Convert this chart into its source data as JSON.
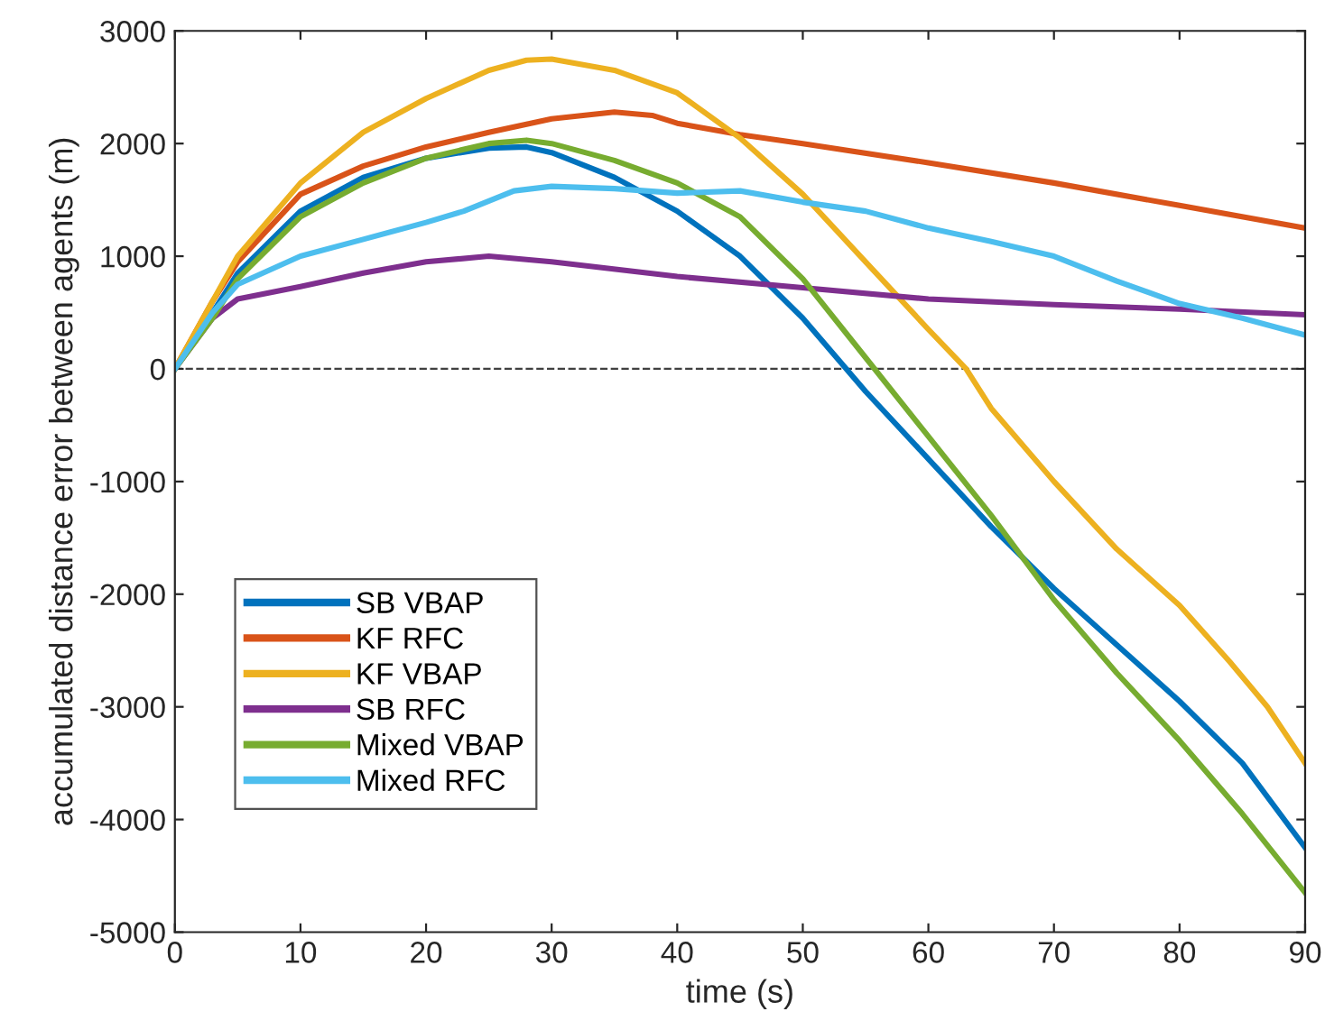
{
  "chart_data": {
    "type": "line",
    "xlabel": "time (s)",
    "ylabel": "accumulated distance error between agents (m)",
    "xlim": [
      0,
      90
    ],
    "xticks": [
      0,
      10,
      20,
      30,
      40,
      50,
      60,
      70,
      80,
      90
    ],
    "ylim": [
      -5000,
      3000
    ],
    "yticks": [
      -5000,
      -4000,
      -3000,
      -2000,
      -1000,
      0,
      1000,
      2000,
      3000
    ],
    "grid": false,
    "legend": "bottom left",
    "line_style": "solid",
    "marker": "none",
    "ref_lines": [
      {
        "axis": "y",
        "value": 0,
        "label": null,
        "color": "#404040",
        "line_style": "dashed"
      }
    ],
    "series": [
      {
        "name": "SB VBAP",
        "color": "#0072bd",
        "x": [
          0,
          3,
          5,
          10,
          15,
          20,
          25,
          28,
          30,
          35,
          40,
          45,
          50,
          55,
          60,
          65,
          70,
          75,
          80,
          85,
          90
        ],
        "values": [
          0,
          500,
          850,
          1400,
          1700,
          1870,
          1960,
          1970,
          1920,
          1700,
          1400,
          1000,
          450,
          -200,
          -800,
          -1400,
          -1950,
          -2450,
          -2950,
          -3500,
          -4250
        ]
      },
      {
        "name": "KF RFC",
        "color": "#d95319",
        "x": [
          0,
          3,
          5,
          10,
          15,
          20,
          25,
          30,
          35,
          38,
          40,
          45,
          50,
          60,
          70,
          80,
          90
        ],
        "values": [
          0,
          600,
          950,
          1550,
          1800,
          1970,
          2100,
          2220,
          2280,
          2250,
          2180,
          2080,
          2000,
          1830,
          1650,
          1450,
          1250
        ]
      },
      {
        "name": "KF VBAP",
        "color": "#edb120",
        "x": [
          0,
          3,
          5,
          10,
          15,
          20,
          25,
          28,
          30,
          35,
          40,
          45,
          50,
          55,
          60,
          63,
          65,
          70,
          75,
          80,
          84,
          87,
          90
        ],
        "values": [
          0,
          600,
          1000,
          1650,
          2100,
          2400,
          2650,
          2740,
          2750,
          2650,
          2450,
          2050,
          1550,
          950,
          350,
          0,
          -350,
          -1000,
          -1600,
          -2100,
          -2600,
          -3000,
          -3500
        ]
      },
      {
        "name": "SB RFC",
        "color": "#7e2f8e",
        "x": [
          0,
          3,
          5,
          10,
          15,
          20,
          25,
          30,
          40,
          50,
          60,
          70,
          80,
          90
        ],
        "values": [
          0,
          450,
          620,
          730,
          850,
          950,
          1000,
          950,
          820,
          720,
          620,
          570,
          530,
          480
        ]
      },
      {
        "name": "Mixed VBAP",
        "color": "#77ac30",
        "x": [
          0,
          3,
          5,
          10,
          15,
          20,
          25,
          28,
          30,
          35,
          40,
          45,
          50,
          55,
          60,
          65,
          70,
          75,
          80,
          85,
          90
        ],
        "values": [
          0,
          450,
          800,
          1350,
          1650,
          1870,
          2000,
          2030,
          2000,
          1850,
          1650,
          1350,
          800,
          100,
          -600,
          -1300,
          -2050,
          -2700,
          -3300,
          -3950,
          -4650
        ]
      },
      {
        "name": "Mixed RFC",
        "color": "#4dbeee",
        "x": [
          0,
          3,
          5,
          10,
          15,
          20,
          23,
          27,
          30,
          35,
          40,
          45,
          50,
          55,
          60,
          65,
          70,
          75,
          80,
          85,
          90
        ],
        "values": [
          0,
          500,
          750,
          1000,
          1150,
          1300,
          1400,
          1580,
          1620,
          1600,
          1560,
          1580,
          1480,
          1400,
          1250,
          1130,
          1000,
          780,
          580,
          450,
          300
        ]
      }
    ]
  }
}
